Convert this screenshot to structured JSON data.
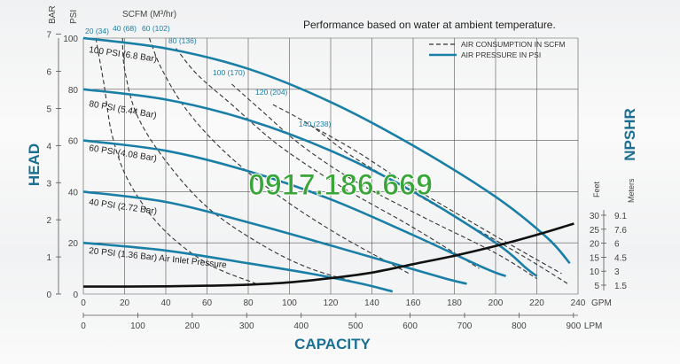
{
  "note": "Performance based on water at ambient temperature.",
  "watermark": "0917.186.669",
  "colors": {
    "pressure_line": "#1a7fa6",
    "air_line": "#333333",
    "npshr_line": "#111111",
    "axis_title": "#1b6f93",
    "watermark": "#3aa63a"
  },
  "chart_data": {
    "type": "line",
    "xlabel": "CAPACITY",
    "ylabel": "HEAD",
    "y2label": "NPSHR",
    "x_ticks_gpm": [
      "0",
      "20",
      "40",
      "60",
      "80",
      "100",
      "120",
      "140",
      "160",
      "180",
      "200",
      "220",
      "240"
    ],
    "x_unit_gpm": "GPM",
    "x_ticks_lpm": [
      "0",
      "100",
      "200",
      "300",
      "400",
      "500",
      "600",
      "700",
      "800",
      "900"
    ],
    "x_unit_lpm": "LPM",
    "xlim_gpm": [
      0,
      240
    ],
    "ylim_psi": [
      0,
      100
    ],
    "y_ticks_psi": [
      "0",
      "20",
      "40",
      "60",
      "80",
      "100"
    ],
    "y_unit_psi": "PSI",
    "y_ticks_bar": [
      "0",
      "1",
      "2",
      "3",
      "4",
      "5",
      "6",
      "7"
    ],
    "y_unit_bar": "BAR",
    "npshr_feet": [
      "5",
      "10",
      "15",
      "20",
      "25",
      "30"
    ],
    "npshr_meters": [
      "1.5",
      "3",
      "4.5",
      "6",
      "7.6",
      "9.1"
    ],
    "npshr_feet_label": "Feet",
    "npshr_meters_label": "Meters",
    "legend": {
      "air": "AIR CONSUMPTION IN SCFM",
      "pressure": "AIR PRESSURE IN PSI"
    },
    "scfm_header": "SCFM (M³/hr)",
    "series": [
      {
        "name": "100 PSI (6.8 Bar)",
        "x": [
          0,
          40,
          80,
          120,
          160,
          200,
          225,
          236
        ],
        "y": [
          100,
          96,
          88,
          75,
          58,
          38,
          22,
          12
        ]
      },
      {
        "name": "80 PSI (5.44 Bar)",
        "x": [
          0,
          40,
          80,
          120,
          160,
          200,
          215,
          220
        ],
        "y": [
          80,
          76,
          68,
          56,
          40,
          20,
          10,
          7
        ]
      },
      {
        "name": "60 PSI (4.08 Bar)",
        "x": [
          0,
          40,
          80,
          120,
          160,
          195,
          205
        ],
        "y": [
          60,
          56,
          48,
          37,
          23,
          10,
          7
        ]
      },
      {
        "name": "40 PSI (2.72 Bar)",
        "x": [
          0,
          40,
          80,
          120,
          150,
          176,
          186
        ],
        "y": [
          40,
          36,
          28,
          19,
          12,
          6,
          4
        ]
      },
      {
        "name": "20 PSI (1.36 Bar) Air Inlet Pressure",
        "x": [
          0,
          40,
          80,
          110,
          135,
          150
        ],
        "y": [
          20,
          17,
          12,
          8,
          4,
          1
        ]
      }
    ],
    "air_curves": [
      {
        "label": "20 (34)",
        "x": [
          6,
          10,
          14,
          22,
          38,
          60,
          84
        ],
        "y": [
          100,
          82,
          62,
          44,
          26,
          12,
          4
        ]
      },
      {
        "label": "40 (68)",
        "x": [
          19,
          20,
          26,
          40,
          60,
          85,
          110,
          140
        ],
        "y": [
          100,
          88,
          70,
          52,
          34,
          20,
          10,
          3
        ]
      },
      {
        "label": "60 (102)",
        "x": [
          32,
          38,
          50,
          68,
          92,
          122,
          158
        ],
        "y": [
          100,
          88,
          72,
          56,
          40,
          24,
          8
        ]
      },
      {
        "label": "80 (136)",
        "x": [
          45,
          55,
          72,
          95,
          125,
          160,
          192
        ],
        "y": [
          96,
          86,
          74,
          58,
          42,
          26,
          10
        ]
      },
      {
        "label": "100 (170)",
        "x": [
          72,
          86,
          106,
          132,
          165,
          200,
          220
        ],
        "y": [
          82,
          72,
          58,
          44,
          30,
          16,
          6
        ]
      },
      {
        "label": "120 (204)",
        "x": [
          92,
          110,
          130,
          155,
          185,
          215,
          235
        ],
        "y": [
          74,
          66,
          54,
          42,
          28,
          14,
          4
        ]
      },
      {
        "label": "140 (238)",
        "x": [
          110,
          132,
          155,
          180,
          210,
          232
        ],
        "y": [
          66,
          56,
          44,
          32,
          18,
          8
        ]
      }
    ],
    "npshr_curve": {
      "x": [
        0,
        20,
        40,
        60,
        80,
        100,
        120,
        140,
        160,
        180,
        200,
        220,
        238
      ],
      "feet": [
        4.5,
        4.5,
        4.6,
        4.8,
        5.2,
        6,
        7.5,
        9.5,
        12.5,
        15.5,
        19,
        23,
        27
      ]
    }
  }
}
